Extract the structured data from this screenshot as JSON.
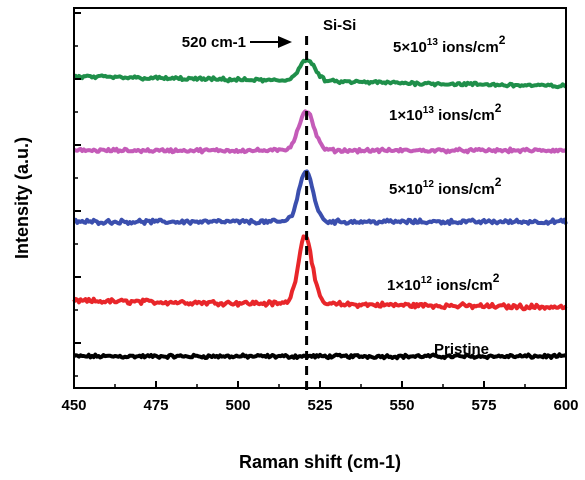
{
  "chart_data": {
    "type": "line",
    "xlabel": "Raman shift (cm-1)",
    "ylabel": "Intensity (a.u.)",
    "xlim": [
      450,
      600
    ],
    "x_ticks": [
      450,
      475,
      500,
      525,
      550,
      575,
      600
    ],
    "x_tick_labels": [
      "450",
      "475",
      "500",
      "525",
      "550",
      "575",
      "600"
    ],
    "y_ticks_labeled": false,
    "grid": false,
    "legend": "none (labels printed beside each curve)",
    "reference_line": {
      "x": 520,
      "style": "dashed",
      "color": "#000000"
    },
    "annotations": {
      "peak_position": "520 cm-1",
      "peak_name": "Si-Si"
    },
    "series": [
      {
        "name": "Pristine",
        "label_parts": [
          "Pristine",
          "",
          "",
          ""
        ],
        "color": "#000000",
        "baseline": 0.0,
        "peak_height": 0.0,
        "peak_center": 520.5,
        "peak_width": 2.0,
        "slope": 0.0,
        "noise": 0.05
      },
      {
        "name": "1×10¹² ions/cm²",
        "label_parts": [
          "1×10",
          "12",
          " ions/cm",
          "2"
        ],
        "color": "#e8262a",
        "baseline": 1.05,
        "peak_height": 1.3,
        "peak_center": 520.5,
        "peak_width": 2.1,
        "slope": -0.0008,
        "noise": 0.07
      },
      {
        "name": "5×10¹² ions/cm²",
        "label_parts": [
          "5×10",
          "12",
          " ions/cm",
          "2"
        ],
        "color": "#3b4fae",
        "baseline": 2.55,
        "peak_height": 0.95,
        "peak_center": 520.7,
        "peak_width": 2.2,
        "slope": 0.0,
        "noise": 0.06
      },
      {
        "name": "1×10¹³ ions/cm²",
        "label_parts": [
          "1×10",
          "13",
          " ions/cm",
          "2"
        ],
        "color": "#c45bb8",
        "baseline": 3.9,
        "peak_height": 0.75,
        "peak_center": 520.8,
        "peak_width": 2.3,
        "slope": 0.0,
        "noise": 0.05
      },
      {
        "name": "5×10¹³ ions/cm²",
        "label_parts": [
          "5×10",
          "13",
          " ions/cm",
          "2"
        ],
        "color": "#1f8f4a",
        "baseline": 5.3,
        "peak_height": 0.4,
        "peak_center": 521.0,
        "peak_width": 2.4,
        "slope": -0.0012,
        "noise": 0.05
      }
    ]
  }
}
